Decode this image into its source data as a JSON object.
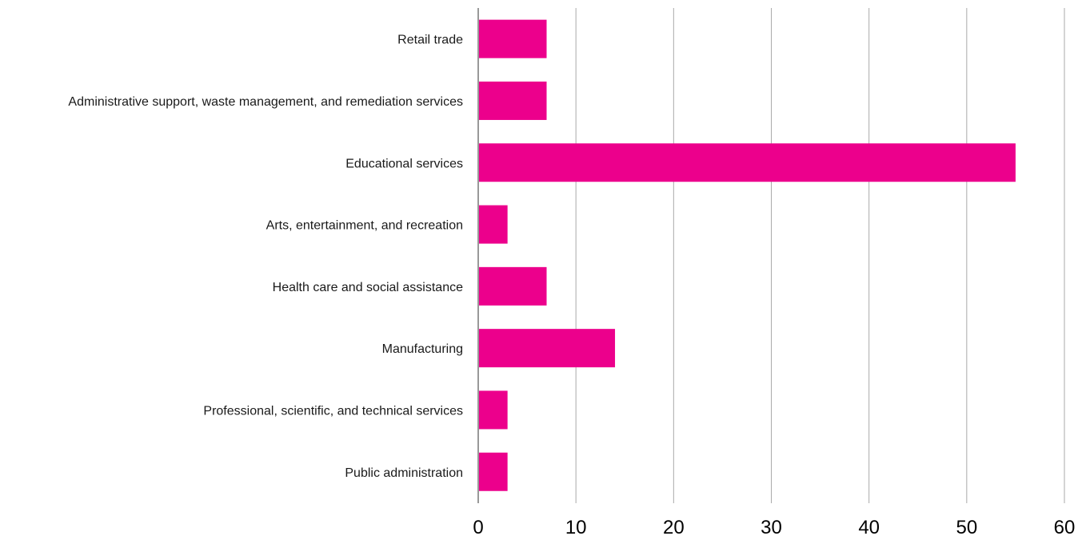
{
  "chart_data": {
    "type": "bar",
    "orientation": "horizontal",
    "title": "",
    "xlabel": "",
    "ylabel": "",
    "categories": [
      "Retail trade",
      "Administrative support, waste management, and remediation services",
      "Educational services",
      "Arts, entertainment, and recreation",
      "Health care and social assistance",
      "Manufacturing",
      "Professional, scientific, and technical services",
      "Public administration"
    ],
    "values": [
      7,
      7,
      55,
      3,
      7,
      14,
      3,
      3
    ],
    "xlim": [
      0,
      60
    ],
    "xticks": [
      0,
      10,
      20,
      30,
      40,
      50,
      60
    ],
    "grid": true,
    "legend": "none",
    "bar_color": "#EC008C",
    "grid_color": "#AAAAAA",
    "axis_color": "#999999"
  }
}
